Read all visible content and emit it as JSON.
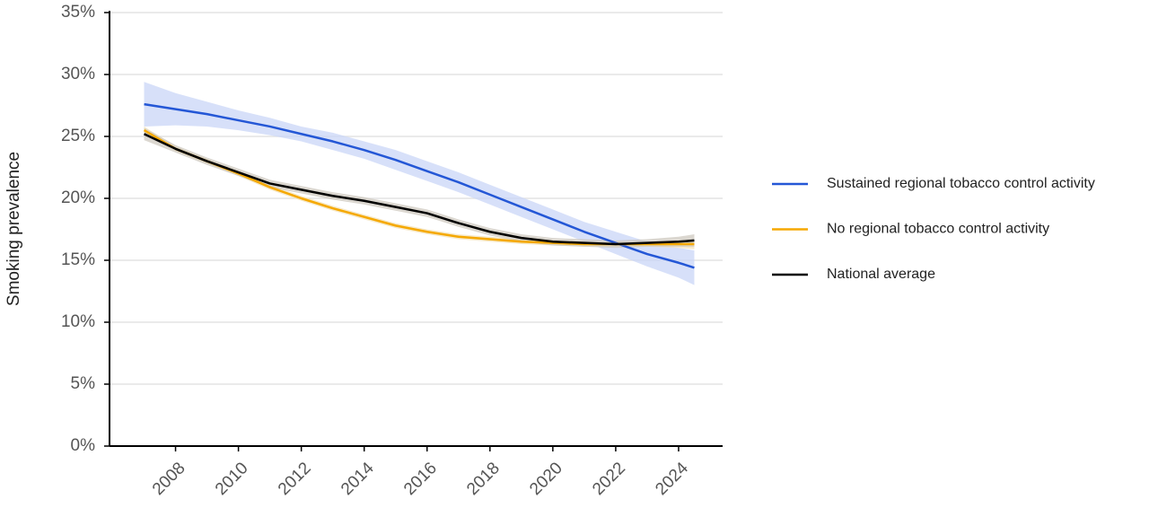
{
  "chart_data": {
    "type": "line",
    "y_label": "Smoking prevalence",
    "x": [
      2007,
      2008,
      2009,
      2010,
      2011,
      2012,
      2013,
      2014,
      2015,
      2016,
      2017,
      2018,
      2019,
      2020,
      2021,
      2022,
      2023,
      2024,
      2024.5
    ],
    "xlim": [
      2005.9,
      2025.4
    ],
    "xticks": [
      2008,
      2010,
      2012,
      2014,
      2016,
      2018,
      2020,
      2022,
      2024
    ],
    "ylim": [
      0,
      35
    ],
    "yticks": [
      {
        "value": 0,
        "label": "0%"
      },
      {
        "value": 5,
        "label": "5%"
      },
      {
        "value": 10,
        "label": "10%"
      },
      {
        "value": 15,
        "label": "15%"
      },
      {
        "value": 20,
        "label": "20%"
      },
      {
        "value": 25,
        "label": "25%"
      },
      {
        "value": 30,
        "label": "30%"
      },
      {
        "value": 35,
        "label": "35%"
      }
    ],
    "grid": true,
    "legend": "right",
    "series": [
      {
        "name": "Sustained regional tobacco control activity",
        "color": "#2457d6",
        "band_color": "#c9d6f7",
        "values": [
          27.6,
          27.2,
          26.8,
          26.3,
          25.8,
          25.2,
          24.6,
          23.9,
          23.1,
          22.2,
          21.3,
          20.3,
          19.3,
          18.3,
          17.3,
          16.4,
          15.5,
          14.8,
          14.4
        ],
        "lower": [
          25.8,
          25.9,
          25.8,
          25.5,
          25.1,
          24.6,
          23.9,
          23.2,
          22.3,
          21.4,
          20.5,
          19.5,
          18.5,
          17.5,
          16.5,
          15.5,
          14.5,
          13.6,
          13.0
        ],
        "upper": [
          29.4,
          28.5,
          27.8,
          27.1,
          26.5,
          25.8,
          25.3,
          24.6,
          23.9,
          23.0,
          22.1,
          21.1,
          20.1,
          19.1,
          18.1,
          17.3,
          16.5,
          16.0,
          15.8
        ]
      },
      {
        "name": "No regional tobacco control activity",
        "color": "#f5a800",
        "band_color": "#f3e2b8",
        "values": [
          25.5,
          24.0,
          23.0,
          22.0,
          20.9,
          20.0,
          19.2,
          18.5,
          17.8,
          17.3,
          16.9,
          16.7,
          16.5,
          16.4,
          16.3,
          16.3,
          16.3,
          16.3,
          16.3
        ],
        "lower": [
          25.2,
          23.8,
          22.8,
          21.8,
          20.7,
          19.8,
          19.0,
          18.3,
          17.6,
          17.1,
          16.7,
          16.5,
          16.3,
          16.2,
          16.1,
          16.1,
          16.1,
          16.0,
          15.9
        ],
        "upper": [
          25.8,
          24.2,
          23.2,
          22.2,
          21.1,
          20.2,
          19.4,
          18.7,
          18.0,
          17.5,
          17.1,
          16.9,
          16.7,
          16.6,
          16.5,
          16.5,
          16.5,
          16.6,
          16.7
        ]
      },
      {
        "name": "National average",
        "color": "#000000",
        "band_color": "#cfcac0",
        "values": [
          25.2,
          24.0,
          23.0,
          22.1,
          21.2,
          20.7,
          20.2,
          19.8,
          19.3,
          18.8,
          18.0,
          17.3,
          16.8,
          16.5,
          16.4,
          16.3,
          16.4,
          16.5,
          16.6
        ],
        "lower": [
          24.7,
          23.7,
          22.7,
          21.8,
          20.9,
          20.4,
          19.9,
          19.5,
          19.0,
          18.5,
          17.7,
          17.0,
          16.5,
          16.2,
          16.1,
          16.0,
          16.1,
          16.1,
          16.1
        ],
        "upper": [
          25.7,
          24.3,
          23.3,
          22.4,
          21.5,
          21.0,
          20.5,
          20.1,
          19.6,
          19.1,
          18.3,
          17.6,
          17.1,
          16.8,
          16.7,
          16.6,
          16.7,
          16.9,
          17.1
        ]
      }
    ]
  }
}
